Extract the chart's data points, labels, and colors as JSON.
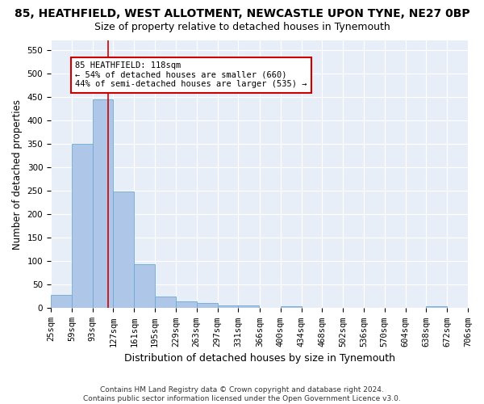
{
  "title": "85, HEATHFIELD, WEST ALLOTMENT, NEWCASTLE UPON TYNE, NE27 0BP",
  "subtitle": "Size of property relative to detached houses in Tynemouth",
  "xlabel": "Distribution of detached houses by size in Tynemouth",
  "ylabel": "Number of detached properties",
  "bar_color": "#aec6e8",
  "bar_edge_color": "#6aaad4",
  "background_color": "#e8eef8",
  "grid_color": "#ffffff",
  "fig_color": "#ffffff",
  "vline_x": 118,
  "vline_color": "#cc0000",
  "annotation_text": "85 HEATHFIELD: 118sqm\n← 54% of detached houses are smaller (660)\n44% of semi-detached houses are larger (535) →",
  "annotation_box_color": "#ffffff",
  "annotation_box_edge": "#cc0000",
  "bin_edges": [
    25,
    59,
    93,
    127,
    161,
    195,
    229,
    263,
    297,
    331,
    366,
    400,
    434,
    468,
    502,
    536,
    570,
    604,
    638,
    672,
    706
  ],
  "bar_heights": [
    28,
    350,
    445,
    248,
    93,
    25,
    14,
    11,
    6,
    6,
    0,
    5,
    0,
    0,
    0,
    0,
    0,
    0,
    5,
    0
  ],
  "ylim": [
    0,
    570
  ],
  "yticks": [
    0,
    50,
    100,
    150,
    200,
    250,
    300,
    350,
    400,
    450,
    500,
    550
  ],
  "footer_text": "Contains HM Land Registry data © Crown copyright and database right 2024.\nContains public sector information licensed under the Open Government Licence v3.0.",
  "title_fontsize": 10,
  "subtitle_fontsize": 9,
  "xlabel_fontsize": 9,
  "ylabel_fontsize": 8.5,
  "tick_fontsize": 7.5,
  "footer_fontsize": 6.5,
  "annot_fontsize": 7.5
}
